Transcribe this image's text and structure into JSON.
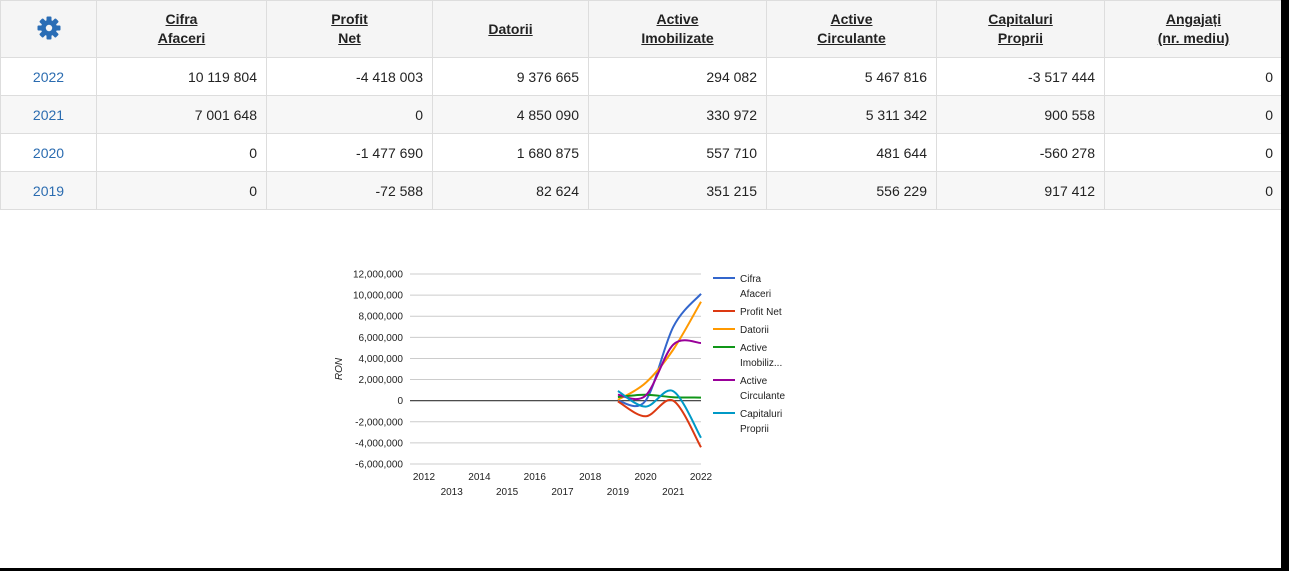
{
  "table": {
    "headers": [
      {
        "id": "gear"
      },
      {
        "lines": [
          "Cifra",
          "Afaceri"
        ]
      },
      {
        "lines": [
          "Profit",
          "Net"
        ]
      },
      {
        "lines": [
          "Datorii"
        ]
      },
      {
        "lines": [
          "Active",
          "Imobilizate"
        ]
      },
      {
        "lines": [
          "Active",
          "Circulante"
        ]
      },
      {
        "lines": [
          "Capitaluri",
          "Proprii"
        ]
      },
      {
        "lines": [
          "Angajați",
          "(nr. mediu)"
        ]
      }
    ],
    "rows": [
      {
        "year": "2022",
        "values": [
          "10 119 804",
          "-4 418 003",
          "9 376 665",
          "294 082",
          "5 467 816",
          "-3 517 444",
          "0"
        ]
      },
      {
        "year": "2021",
        "values": [
          "7 001 648",
          "0",
          "4 850 090",
          "330 972",
          "5 311 342",
          "900 558",
          "0"
        ]
      },
      {
        "year": "2020",
        "values": [
          "0",
          "-1 477 690",
          "1 680 875",
          "557 710",
          "481 644",
          "-560 278",
          "0"
        ]
      },
      {
        "year": "2019",
        "values": [
          "0",
          "-72 588",
          "82 624",
          "351 215",
          "556 229",
          "917 412",
          "0"
        ]
      }
    ]
  },
  "colors": {
    "gear": "#2a6db5",
    "link": "#2b6cb0",
    "header_bg": "#f5f5f5",
    "border": "#dddddd"
  },
  "icons": {
    "settings": "gear-icon"
  },
  "chart_data": {
    "type": "line",
    "ylabel": "RON",
    "xlabel": "",
    "ylim": [
      -6000000,
      12000000
    ],
    "xlim": [
      2012,
      2022
    ],
    "y_ticks": [
      "12,000,000",
      "10,000,000",
      "8,000,000",
      "6,000,000",
      "4,000,000",
      "2,000,000",
      "0",
      "-2,000,000",
      "-4,000,000",
      "-6,000,000"
    ],
    "x_ticks": [
      "2012",
      "2013",
      "2014",
      "2015",
      "2016",
      "2017",
      "2018",
      "2019",
      "2020",
      "2021",
      "2022"
    ],
    "grid": true,
    "legend_position": "right",
    "x": [
      2019,
      2020,
      2021,
      2022
    ],
    "series": [
      {
        "legend": [
          "Cifra",
          "Afaceri"
        ],
        "color": "#3366cc",
        "values": [
          0,
          0,
          7001648,
          10119804
        ]
      },
      {
        "legend": [
          "Profit Net"
        ],
        "color": "#dc3912",
        "values": [
          -72588,
          -1477690,
          0,
          -4418003
        ]
      },
      {
        "legend": [
          "Datorii"
        ],
        "color": "#ff9900",
        "values": [
          82624,
          1680875,
          4850090,
          9376665
        ]
      },
      {
        "legend": [
          "Active",
          "Imobiliz..."
        ],
        "color": "#109618",
        "values": [
          351215,
          557710,
          330972,
          294082
        ]
      },
      {
        "legend": [
          "Active",
          "Circulante"
        ],
        "color": "#990099",
        "values": [
          556229,
          481644,
          5311342,
          5467816
        ]
      },
      {
        "legend": [
          "Capitaluri",
          "Proprii"
        ],
        "color": "#0099c6",
        "values": [
          917412,
          -560278,
          900558,
          -3517444
        ]
      }
    ]
  }
}
